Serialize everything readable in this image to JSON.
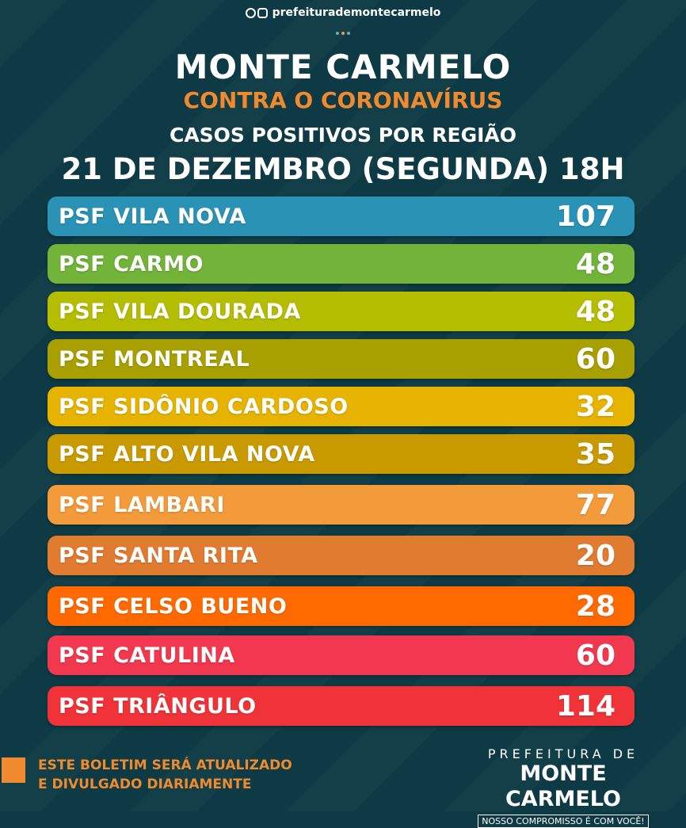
{
  "social": {
    "handle": "prefeiturademontecarmelo"
  },
  "header": {
    "title": "MONTE CARMELO",
    "subtitle": "CONTRA O CORONAVÍRUS",
    "section": "CASOS POSITIVOS POR REGIÃO",
    "date": "21 DE DEZEMBRO (SEGUNDA) 18H"
  },
  "regions": [
    {
      "name": "PSF VILA NOVA",
      "value": "107",
      "color": "#2a93b5"
    },
    {
      "name": "PSF CARMO",
      "value": "48",
      "color": "#72b33a"
    },
    {
      "name": "PSF VILA DOURADA",
      "value": "48",
      "color": "#b5bd00"
    },
    {
      "name": "PSF MONTREAL",
      "value": "60",
      "color": "#a8a000"
    },
    {
      "name": "PSF SIDÔNIO CARDOSO",
      "value": "32",
      "color": "#e6b400"
    },
    {
      "name": "PSF ALTO VILA NOVA",
      "value": "35",
      "color": "#c99a00"
    },
    {
      "name": "PSF LAMBARI",
      "value": "77",
      "color": "#f39a3a"
    },
    {
      "name": "PSF SANTA RITA",
      "value": "20",
      "color": "#e07b30"
    },
    {
      "name": "PSF CELSO BUENO",
      "value": "28",
      "color": "#ff6a00"
    },
    {
      "name": "PSF CATULINA",
      "value": "60",
      "color": "#f2384f"
    },
    {
      "name": "PSF TRIÂNGULO",
      "value": "114",
      "color": "#ef3338"
    }
  ],
  "footer": {
    "notice_line1": "ESTE BOLETIM SERÁ ATUALIZADO",
    "notice_line2": "E DIVULGADO DIARIAMENTE",
    "logo_line1": "PREFEITURA DE",
    "logo_line2": "MONTE CARMELO",
    "logo_tagline": "NOSSO COMPROMISSO É COM VOCÊ!"
  }
}
